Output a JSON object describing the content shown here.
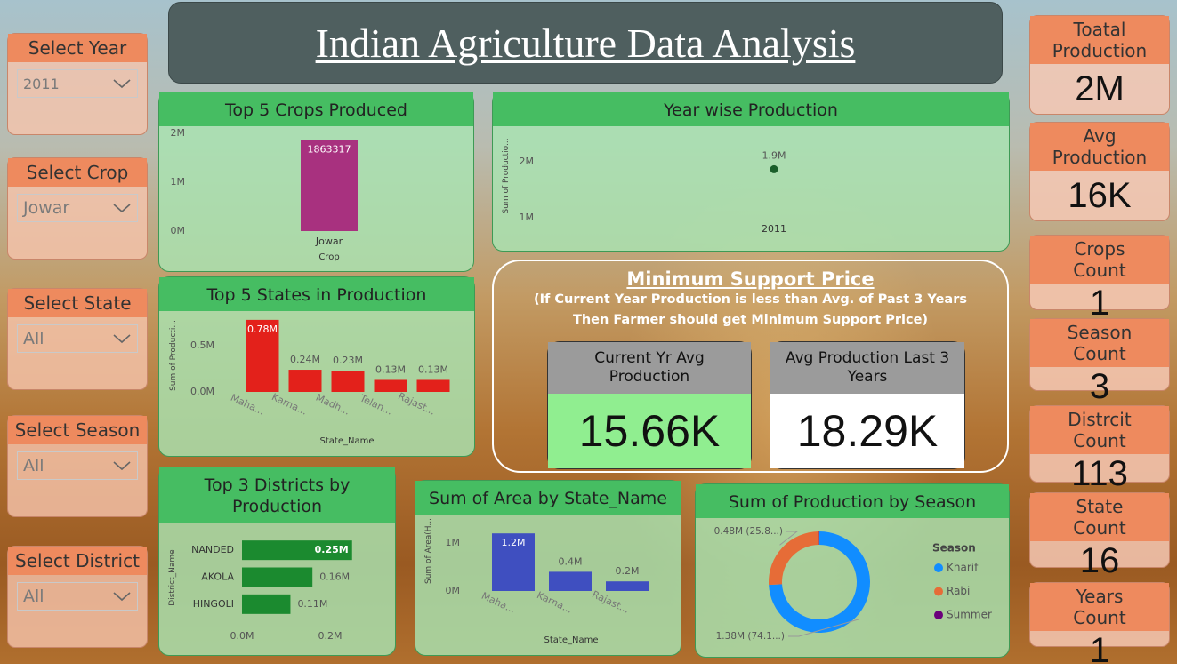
{
  "title": "Indian Agriculture Data Analysis",
  "slicers": [
    {
      "label": "Select Year",
      "selected": "2011"
    },
    {
      "label": "Select Crop",
      "selected": "Jowar"
    },
    {
      "label": "Select State",
      "selected": "All"
    },
    {
      "label": "Select Season",
      "selected": "All"
    },
    {
      "label": "Select District",
      "selected": "All"
    }
  ],
  "cards": [
    {
      "label": "Toatal Production",
      "value": "2M"
    },
    {
      "label": "Avg Production",
      "value": "16K"
    },
    {
      "label": "Crops Count",
      "value": "1"
    },
    {
      "label": "Season Count",
      "value": "3"
    },
    {
      "label": "Distrcit Count",
      "value": "113"
    },
    {
      "label": "State Count",
      "value": "16"
    },
    {
      "label": "Years Count",
      "value": "1"
    }
  ],
  "msp": {
    "title": "Minimum Support Price",
    "note": [
      "(If Current Year Production is less than Avg. of Past 3 Years",
      "Then Farmer should get Minimum Support Price)"
    ],
    "cards": [
      {
        "label": "Current Yr Avg Production",
        "value": "15.66K"
      },
      {
        "label": "Avg Production Last 3 Years",
        "value": "18.29K"
      }
    ]
  },
  "chart_data": [
    {
      "type": "bar",
      "title": "Top 5 Crops Produced",
      "x_label": "Crop",
      "categories": [
        "Jowar"
      ],
      "values": [
        1863317
      ],
      "color": "#a8317f",
      "ylim": [
        0,
        2000000
      ],
      "yticks": [
        {
          "value": 0,
          "label": "0M"
        },
        {
          "value": 1000000,
          "label": "1M"
        },
        {
          "value": 2000000,
          "label": "2M"
        }
      ]
    },
    {
      "type": "line",
      "title": "Year wise Production",
      "y_label": "Sum of Productio...",
      "categories": [
        "2011"
      ],
      "values": [
        1863317
      ],
      "value_labels": [
        "1.9M"
      ],
      "color": "#1a5e2a",
      "ylim": [
        600000,
        2600000
      ],
      "yticks": [
        {
          "value": 1000000,
          "label": "1M"
        },
        {
          "value": 2000000,
          "label": "2M"
        }
      ]
    },
    {
      "type": "bar",
      "title": "Top 5 States in Production",
      "x_label": "State_Name",
      "y_label": "Sum of Producti...",
      "categories": [
        "Maha...",
        "Karna...",
        "Madh...",
        "Telan...",
        "Rajast..."
      ],
      "values": [
        780000,
        240000,
        230000,
        130000,
        130000
      ],
      "value_labels": [
        "0.78M",
        "0.24M",
        "0.23M",
        "0.13M",
        "0.13M"
      ],
      "color": "#e3211b",
      "ylim": [
        0,
        850000
      ],
      "yticks": [
        {
          "value": 0,
          "label": "0.0M"
        },
        {
          "value": 500000,
          "label": "0.5M"
        }
      ]
    },
    {
      "type": "barh",
      "title": "Top 3 Districts by Production",
      "y_label": "District_Name",
      "categories": [
        "NANDED",
        "AKOLA",
        "HINGOLI"
      ],
      "values": [
        250000,
        160000,
        110000
      ],
      "value_labels": [
        "0.25M",
        "0.16M",
        "0.11M"
      ],
      "color": "#1b8a2f",
      "xlim": [
        0,
        250000
      ],
      "xticks": [
        {
          "value": 0,
          "label": "0.0M"
        },
        {
          "value": 200000,
          "label": "0.2M"
        }
      ]
    },
    {
      "type": "bar",
      "title": "Sum of Area by State_Name",
      "x_label": "State_Name",
      "y_label": "Sum of Area(H...",
      "categories": [
        "Maha...",
        "Karna...",
        "Rajast..."
      ],
      "values": [
        1200000,
        400000,
        200000
      ],
      "value_labels": [
        "1.2M",
        "0.4M",
        "0.2M"
      ],
      "color": "#3f4fc0",
      "ylim": [
        0,
        1300000
      ],
      "yticks": [
        {
          "value": 0,
          "label": "0M"
        },
        {
          "value": 1000000,
          "label": "1M"
        }
      ]
    },
    {
      "type": "donut",
      "title": "Sum of Production by Season",
      "legend_title": "Season",
      "legend": "right",
      "categories": [
        "Kharif",
        "Rabi",
        "Summer"
      ],
      "values": [
        1380000,
        480000,
        2000
      ],
      "value_labels": [
        "1.38M (74.1...)",
        "0.48M (25.8...)",
        null
      ],
      "colors": [
        "#118dff",
        "#e66c37",
        "#6b007b"
      ]
    }
  ]
}
